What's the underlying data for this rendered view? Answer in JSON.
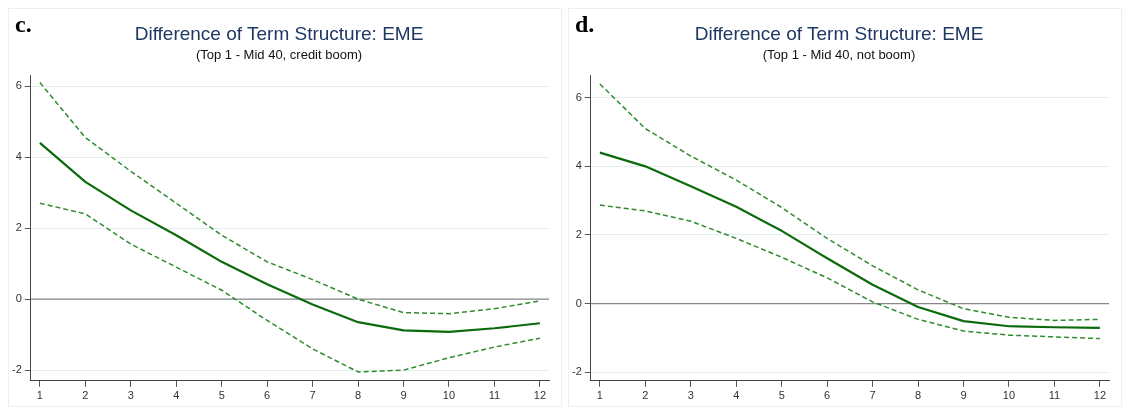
{
  "chart_data": [
    {
      "type": "line",
      "title": "Difference of Term Structure: EME",
      "subtitle": "(Top 1 - Mid 40, credit boom)",
      "annotations": [
        "c."
      ],
      "x": [
        1,
        2,
        3,
        4,
        5,
        6,
        7,
        8,
        9,
        10,
        11,
        12
      ],
      "xlim": [
        0.8,
        12.2
      ],
      "xticks": [
        1,
        2,
        3,
        4,
        5,
        6,
        7,
        8,
        9,
        10,
        11,
        12
      ],
      "series": [
        {
          "color": "#0b6b0b",
          "line_style": "solid",
          "values": [
            4.4,
            3.3,
            2.5,
            1.8,
            1.05,
            0.42,
            -0.15,
            -0.65,
            -0.88,
            -0.92,
            -0.82,
            -0.68
          ]
        },
        {
          "color": "#2e8b2e",
          "line_style": "dashed",
          "values": [
            6.1,
            4.55,
            3.6,
            2.7,
            1.8,
            1.05,
            0.55,
            0,
            -0.38,
            -0.41,
            -0.27,
            -0.05
          ]
        },
        {
          "color": "#2e8b2e",
          "line_style": "dashed",
          "values": [
            2.7,
            2.4,
            1.55,
            0.9,
            0.25,
            -0.6,
            -1.4,
            -2.05,
            -2.0,
            -1.65,
            -1.35,
            -1.1
          ]
        }
      ],
      "ylim": [
        -2.3,
        6.3
      ],
      "yticks": [
        -2,
        0,
        2,
        4,
        6
      ],
      "grid": "y",
      "legend": false,
      "marker": "none",
      "ref_lines": [
        {
          "axis": "y",
          "value": 0,
          "color": "#888888"
        }
      ]
    },
    {
      "type": "line",
      "title": "Difference of Term Structure: EME",
      "subtitle": "(Top 1 - Mid 40, not boom)",
      "annotations": [
        "d."
      ],
      "x": [
        1,
        2,
        3,
        4,
        5,
        6,
        7,
        8,
        9,
        10,
        11,
        12
      ],
      "xlim": [
        0.8,
        12.2
      ],
      "xticks": [
        1,
        2,
        3,
        4,
        5,
        6,
        7,
        8,
        9,
        10,
        11,
        12
      ],
      "series": [
        {
          "color": "#0b6b0b",
          "line_style": "solid",
          "values": [
            4.4,
            4.0,
            3.42,
            2.82,
            2.12,
            1.32,
            0.55,
            -0.1,
            -0.51,
            -0.66,
            -0.69,
            -0.71
          ]
        },
        {
          "color": "#2e8b2e",
          "line_style": "dashed",
          "values": [
            6.4,
            5.1,
            4.3,
            3.6,
            2.8,
            1.9,
            1.1,
            0.4,
            -0.15,
            -0.4,
            -0.49,
            -0.46
          ]
        },
        {
          "color": "#2e8b2e",
          "line_style": "dashed",
          "values": [
            2.87,
            2.7,
            2.4,
            1.9,
            1.35,
            0.75,
            0.05,
            -0.46,
            -0.8,
            -0.92,
            -0.97,
            -1.02
          ]
        }
      ],
      "ylim": [
        -2.25,
        6.65
      ],
      "yticks": [
        -2,
        0,
        2,
        4,
        6
      ],
      "grid": "y",
      "legend": false,
      "marker": "none",
      "ref_lines": [
        {
          "axis": "y",
          "value": 0,
          "color": "#888888"
        }
      ]
    }
  ]
}
